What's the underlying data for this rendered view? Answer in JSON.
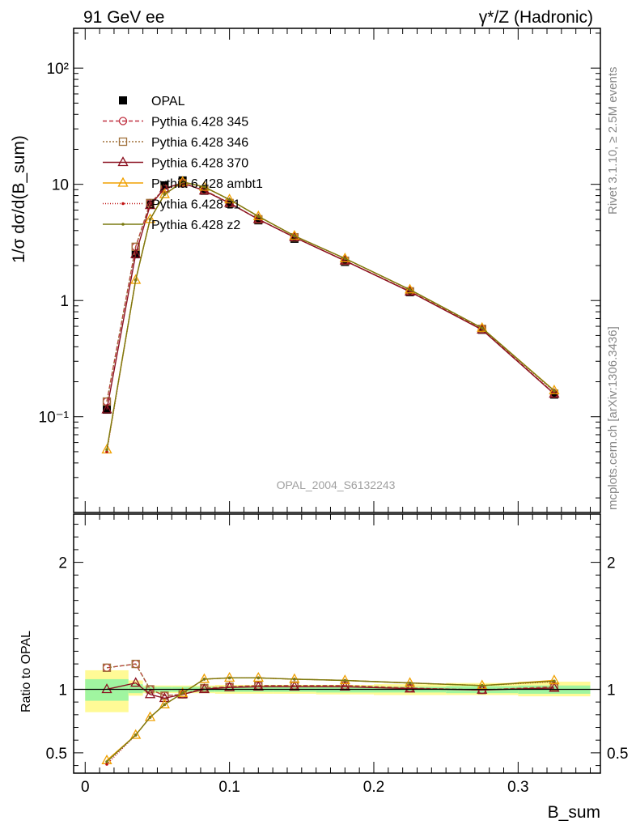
{
  "header": {
    "left_title": "91 GeV ee",
    "right_title": "γ*/Z (Hadronic)"
  },
  "side_text": {
    "rivet": "Rivet 3.1.10, ≥ 2.5M events",
    "mcplots": "mcplots.cern.ch [arXiv:1306.3436]"
  },
  "watermark": "OPAL_2004_S6132243",
  "chart_data": [
    {
      "type": "line",
      "panel": "main",
      "ylabel": "1/σ dσ/d(B_sum)",
      "xlabel": "",
      "yscale": "log",
      "xlim": [
        -0.008,
        0.357
      ],
      "ylim": [
        0.015,
        220
      ],
      "y_ticks": [
        0.1,
        1,
        10,
        100
      ],
      "y_tick_labels": [
        "10⁻¹",
        "1",
        "10",
        "10²"
      ],
      "legend_position": "top-left",
      "x": [
        0.015,
        0.035,
        0.045,
        0.055,
        0.0675,
        0.0825,
        0.1,
        0.12,
        0.145,
        0.18,
        0.225,
        0.275,
        0.325
      ],
      "series": [
        {
          "name": "OPAL",
          "color": "#000000",
          "marker": "square-filled",
          "dash": "none",
          "values": [
            0.115,
            2.5,
            6.7,
            9.8,
            10.8,
            8.8,
            6.8,
            4.9,
            3.4,
            2.15,
            1.18,
            0.56,
            0.155
          ]
        },
        {
          "name": "Pythia 6.428 345",
          "color": "#c03040",
          "marker": "circle-open",
          "dash": "5,3",
          "values": [
            0.135,
            2.9,
            6.9,
            9.1,
            10.2,
            8.9,
            6.9,
            5.0,
            3.5,
            2.2,
            1.2,
            0.57,
            0.158
          ]
        },
        {
          "name": "Pythia 6.428 346",
          "color": "#a0703a",
          "marker": "square-open",
          "dash": "2,2",
          "values": [
            0.135,
            2.9,
            6.9,
            9.1,
            10.2,
            8.9,
            6.9,
            5.0,
            3.5,
            2.2,
            1.2,
            0.57,
            0.158
          ]
        },
        {
          "name": "Pythia 6.428 370",
          "color": "#8b1020",
          "marker": "triangle-open",
          "dash": "none",
          "values": [
            0.115,
            2.5,
            6.6,
            9.2,
            10.3,
            8.8,
            6.9,
            5.0,
            3.5,
            2.2,
            1.19,
            0.56,
            0.157
          ]
        },
        {
          "name": "Pythia 6.428 ambt1",
          "color": "#f0a000",
          "marker": "triangle-open",
          "dash": "none",
          "values": [
            0.052,
            1.5,
            5.0,
            8.2,
            10.5,
            9.5,
            7.4,
            5.3,
            3.6,
            2.3,
            1.24,
            0.58,
            0.168
          ]
        },
        {
          "name": "Pythia 6.428 z1",
          "color": "#c01010",
          "marker": "dot",
          "dash": "1,2",
          "values": [
            0.05,
            1.5,
            5.0,
            8.2,
            10.5,
            9.5,
            7.4,
            5.3,
            3.6,
            2.3,
            1.24,
            0.58,
            0.165
          ]
        },
        {
          "name": "Pythia 6.428 z2",
          "color": "#7a7a10",
          "marker": "dot",
          "dash": "none",
          "values": [
            0.052,
            1.5,
            5.0,
            8.2,
            10.5,
            9.5,
            7.4,
            5.3,
            3.6,
            2.3,
            1.24,
            0.58,
            0.167
          ]
        }
      ]
    },
    {
      "type": "line",
      "panel": "ratio",
      "ylabel": "Ratio to OPAL",
      "xlabel": "B_sum",
      "xlim": [
        -0.008,
        0.357
      ],
      "ylim": [
        0.34,
        2.38
      ],
      "y_ticks": [
        0.5,
        1,
        2
      ],
      "y_tick_labels": [
        "0.5",
        "1",
        "2"
      ],
      "x_ticks": [
        0,
        0.1,
        0.2,
        0.3
      ],
      "x_tick_labels": [
        "0",
        "0.1",
        "0.2",
        "0.3"
      ],
      "bins": [
        [
          0,
          0.03
        ],
        [
          0.03,
          0.04
        ],
        [
          0.04,
          0.05
        ],
        [
          0.05,
          0.06
        ],
        [
          0.06,
          0.075
        ],
        [
          0.075,
          0.09
        ],
        [
          0.09,
          0.11
        ],
        [
          0.11,
          0.13
        ],
        [
          0.13,
          0.16
        ],
        [
          0.16,
          0.2
        ],
        [
          0.2,
          0.25
        ],
        [
          0.25,
          0.3
        ],
        [
          0.3,
          0.35
        ]
      ],
      "band_inner": [
        [
          0.91,
          1.08
        ],
        [
          0.97,
          1.04
        ],
        [
          0.98,
          1.02
        ],
        [
          0.98,
          1.02
        ],
        [
          0.98,
          1.02
        ],
        [
          0.98,
          1.02
        ],
        [
          0.98,
          1.02
        ],
        [
          0.98,
          1.02
        ],
        [
          0.98,
          1.02
        ],
        [
          0.975,
          1.02
        ],
        [
          0.975,
          1.02
        ],
        [
          0.97,
          1.025
        ],
        [
          0.965,
          1.03
        ]
      ],
      "band_outer": [
        [
          0.82,
          1.15
        ],
        [
          0.95,
          1.07
        ],
        [
          0.97,
          1.03
        ],
        [
          0.97,
          1.03
        ],
        [
          0.97,
          1.03
        ],
        [
          0.97,
          1.03
        ],
        [
          0.965,
          1.035
        ],
        [
          0.965,
          1.035
        ],
        [
          0.965,
          1.035
        ],
        [
          0.96,
          1.035
        ],
        [
          0.955,
          1.04
        ],
        [
          0.955,
          1.05
        ],
        [
          0.945,
          1.06
        ]
      ],
      "band_colors": {
        "inner": "#a0f5a0",
        "outer": "#fffa96"
      },
      "x": [
        0.015,
        0.035,
        0.045,
        0.055,
        0.0675,
        0.0825,
        0.1,
        0.12,
        0.145,
        0.18,
        0.225,
        0.275,
        0.325
      ],
      "series": [
        {
          "name": "Pythia 6.428 345",
          "color": "#c03040",
          "marker": "circle-open",
          "dash": "5,3",
          "values": [
            1.17,
            1.2,
            1.0,
            0.95,
            0.96,
            1.01,
            1.02,
            1.03,
            1.03,
            1.03,
            1.01,
            0.995,
            1.02
          ]
        },
        {
          "name": "Pythia 6.428 346",
          "color": "#a0703a",
          "marker": "square-open",
          "dash": "2,2",
          "values": [
            1.17,
            1.2,
            1.0,
            0.95,
            0.96,
            1.01,
            1.02,
            1.03,
            1.03,
            1.03,
            1.01,
            0.995,
            1.02
          ]
        },
        {
          "name": "Pythia 6.428 370",
          "color": "#8b1020",
          "marker": "triangle-open",
          "dash": "none",
          "values": [
            1.0,
            1.05,
            0.96,
            0.93,
            0.96,
            1.0,
            1.015,
            1.02,
            1.02,
            1.02,
            1.005,
            0.995,
            1.01
          ]
        },
        {
          "name": "Pythia 6.428 ambt1",
          "color": "#f0a000",
          "marker": "triangle-open",
          "dash": "none",
          "values": [
            0.44,
            0.64,
            0.78,
            0.88,
            0.97,
            1.08,
            1.09,
            1.09,
            1.08,
            1.07,
            1.05,
            1.03,
            1.07
          ]
        },
        {
          "name": "Pythia 6.428 z1",
          "color": "#c01010",
          "marker": "dot",
          "dash": "1,2",
          "values": [
            0.41,
            0.64,
            0.78,
            0.88,
            0.97,
            1.08,
            1.09,
            1.09,
            1.08,
            1.07,
            1.05,
            1.03,
            1.06
          ]
        },
        {
          "name": "Pythia 6.428 z2",
          "color": "#7a7a10",
          "marker": "dot",
          "dash": "none",
          "values": [
            0.43,
            0.64,
            0.78,
            0.88,
            0.97,
            1.08,
            1.09,
            1.09,
            1.08,
            1.07,
            1.05,
            1.03,
            1.065
          ]
        }
      ]
    }
  ]
}
